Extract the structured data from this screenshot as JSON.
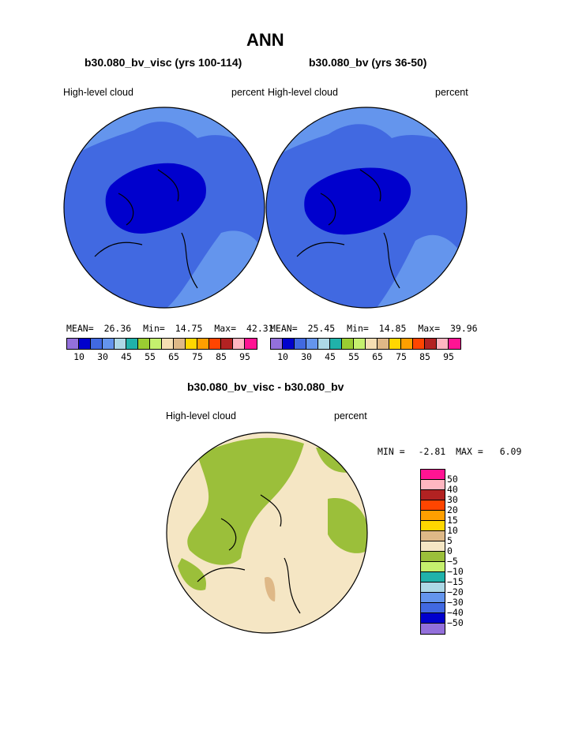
{
  "title": "ANN",
  "left_panel": {
    "case": "b30.080_bv_visc (yrs 100-114)",
    "field": "High-level cloud",
    "units": "percent",
    "stats": {
      "mean_label": "MEAN=",
      "mean": "26.36",
      "min_label": "Min=",
      "min": "14.75",
      "max_label": "Max=",
      "max": "42.31"
    }
  },
  "right_panel": {
    "case": "b30.080_bv (yrs 36-50)",
    "field": "High-level cloud",
    "units": "percent",
    "stats": {
      "mean_label": "MEAN=",
      "mean": "25.45",
      "min_label": "Min=",
      "min": "14.85",
      "max_label": "Max=",
      "max": "39.96"
    }
  },
  "colorbar": {
    "colors": [
      "#9370db",
      "#0000cd",
      "#4169e1",
      "#6495ed",
      "#add8e6",
      "#20b2aa",
      "#9acd32",
      "#c5f06e",
      "#f5deb3",
      "#deb887",
      "#ffd700",
      "#ff9f00",
      "#ff4500",
      "#b22222",
      "#ffb6c1",
      "#ff1493"
    ],
    "tick_labels": [
      "10",
      "30",
      "45",
      "55",
      "65",
      "75",
      "85",
      "95"
    ]
  },
  "diff_panel": {
    "title": "b30.080_bv_visc - b30.080_bv",
    "field": "High-level cloud",
    "units": "percent",
    "min_label": "MIN =",
    "min": "-2.81",
    "max_label": "MAX =",
    "max": "6.09",
    "colorbar": {
      "colors": [
        "#ff1493",
        "#ffb6c1",
        "#b22222",
        "#ff4500",
        "#ff9f00",
        "#ffd700",
        "#deb887",
        "#f5e6c4",
        "#9bbf3a",
        "#c5f06e",
        "#20b2aa",
        "#add8e6",
        "#6495ed",
        "#4169e1",
        "#0000cd",
        "#9370db"
      ],
      "labels": [
        "50",
        "40",
        "30",
        "20",
        "15",
        "10",
        "5",
        "0",
        "−5",
        "−10",
        "−15",
        "−20",
        "−30",
        "−40",
        "−50"
      ]
    }
  },
  "map_colors": {
    "ocean_line": "#000000",
    "left_base": "#4169e1",
    "left_light": "#6495ed",
    "left_dark": "#0000cd",
    "right_base": "#4169e1",
    "right_light": "#6495ed",
    "right_dark": "#0000cd",
    "diff_base": "#f5e6c4",
    "diff_green": "#9bbf3a",
    "diff_tan": "#deb887"
  }
}
